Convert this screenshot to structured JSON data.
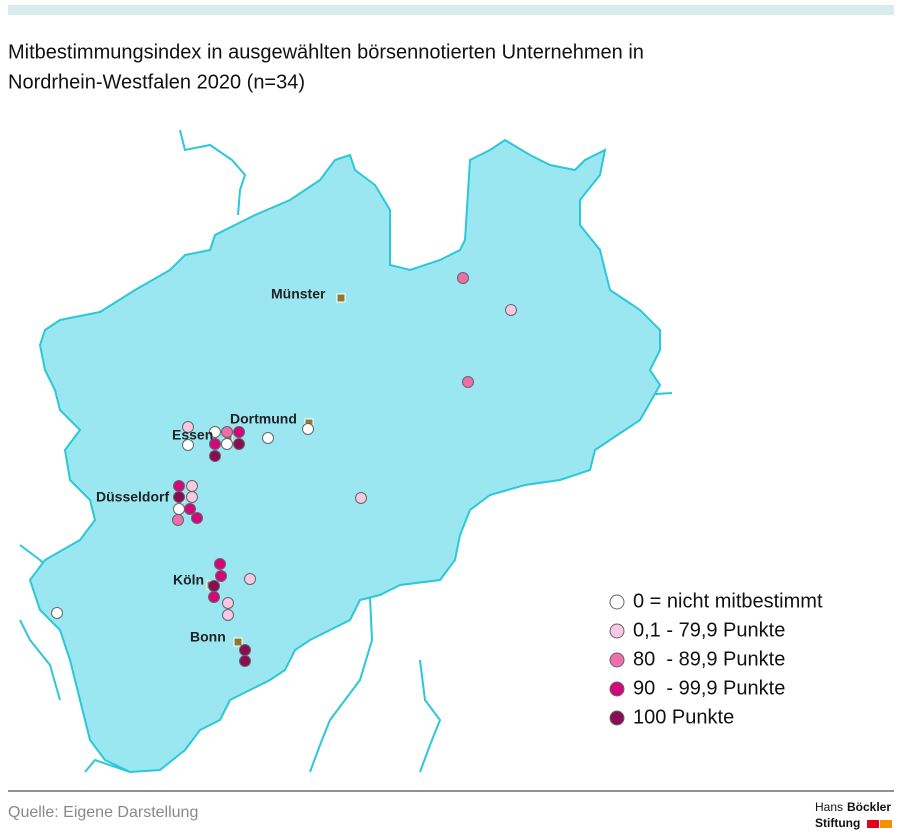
{
  "header": {
    "title": [
      "Mitbestimmungsindex in ausgewählten börsennotierten Unternehmen in",
      "Nordrhein-Westfalen 2020 (n=34)"
    ]
  },
  "map": {
    "cities": [
      "Münster",
      "Dortmund",
      "Essen",
      "Düsseldorf",
      "Köln",
      "Bonn"
    ]
  },
  "legend": {
    "items": [
      "0 = nicht mitbestimmt",
      "0,1 - 79,9 Punkte",
      "80  - 89,9 Punkte",
      "90  - 99,9 Punkte",
      "100 Punkte"
    ]
  },
  "footer": {
    "source": "Quelle: Eigene Darstellung",
    "logo": [
      "Hans",
      "Böckler",
      "Stiftung"
    ]
  }
}
